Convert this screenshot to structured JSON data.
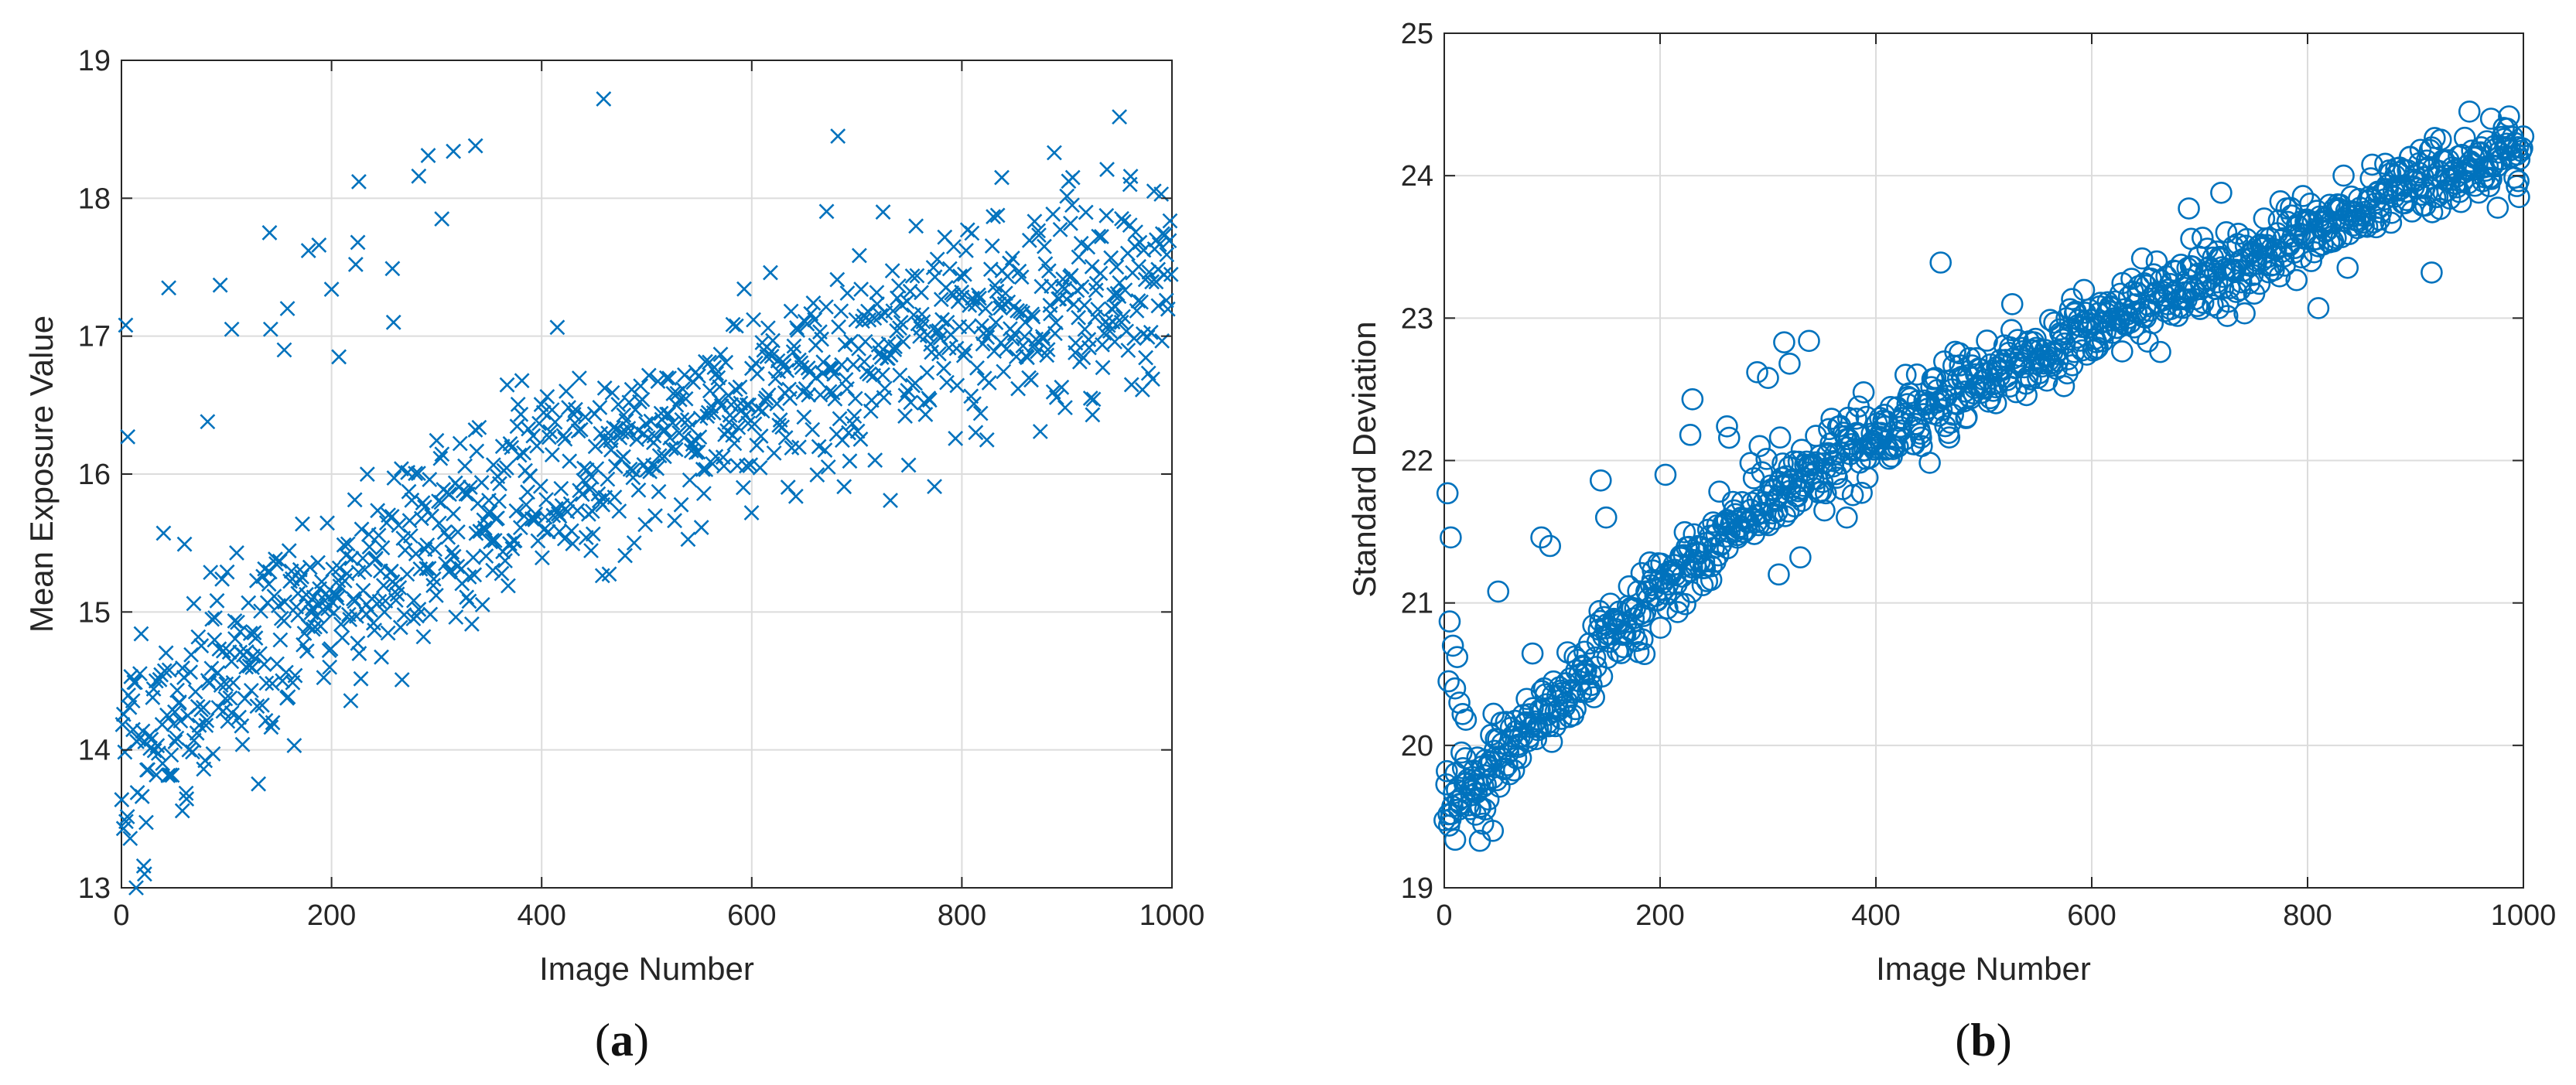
{
  "chart_data": [
    {
      "type": "scatter",
      "panel_label": "a",
      "title": "",
      "xlabel": "Image Number",
      "ylabel": "Mean Exposure Value",
      "xlim": [
        0,
        1000
      ],
      "ylim": [
        13,
        19
      ],
      "xticks": [
        0,
        200,
        400,
        600,
        800,
        1000
      ],
      "yticks": [
        13,
        14,
        15,
        16,
        17,
        18,
        19
      ],
      "grid": true,
      "marker": "x",
      "color": "#0072bd",
      "trend": {
        "points": [
          [
            0,
            14.0
          ],
          [
            200,
            15.1
          ],
          [
            400,
            15.95
          ],
          [
            600,
            16.55
          ],
          [
            800,
            17.05
          ],
          [
            1000,
            17.45
          ]
        ],
        "spread": 0.38
      },
      "point_count": 1000,
      "seed": 11,
      "outliers": [
        [
          4,
          17.08
        ],
        [
          6,
          16.27
        ],
        [
          2,
          13.43
        ],
        [
          14,
          13.0
        ],
        [
          22,
          13.1
        ],
        [
          45,
          17.35
        ],
        [
          94,
          17.37
        ],
        [
          82,
          16.38
        ],
        [
          105,
          17.05
        ],
        [
          141,
          17.75
        ],
        [
          142,
          17.05
        ],
        [
          155,
          16.9
        ],
        [
          158,
          17.2
        ],
        [
          178,
          17.62
        ],
        [
          188,
          17.66
        ],
        [
          200,
          17.34
        ],
        [
          207,
          16.85
        ],
        [
          223,
          17.52
        ],
        [
          225,
          17.68
        ],
        [
          226,
          18.12
        ],
        [
          258,
          17.49
        ],
        [
          259,
          17.1
        ],
        [
          283,
          18.16
        ],
        [
          292,
          18.31
        ],
        [
          305,
          17.85
        ],
        [
          316,
          18.34
        ],
        [
          337,
          18.38
        ],
        [
          459,
          18.72
        ],
        [
          682,
          18.45
        ],
        [
          950,
          18.59
        ],
        [
          725,
          17.9
        ],
        [
          888,
          18.33
        ],
        [
          960,
          18.1
        ],
        [
          905,
          17.95
        ],
        [
          838,
          18.15
        ]
      ]
    },
    {
      "type": "scatter",
      "panel_label": "b",
      "title": "",
      "xlabel": "Image Number",
      "ylabel": "Standard Deviation",
      "xlim": [
        0,
        1000
      ],
      "ylim": [
        19,
        25
      ],
      "xticks": [
        0,
        200,
        400,
        600,
        800,
        1000
      ],
      "yticks": [
        19,
        20,
        21,
        22,
        23,
        24,
        25
      ],
      "grid": true,
      "marker": "o",
      "color": "#0072bd",
      "trend": {
        "points": [
          [
            30,
            19.75
          ],
          [
            100,
            20.3
          ],
          [
            200,
            21.1
          ],
          [
            300,
            21.75
          ],
          [
            400,
            22.15
          ],
          [
            500,
            22.6
          ],
          [
            600,
            22.95
          ],
          [
            700,
            23.25
          ],
          [
            800,
            23.6
          ],
          [
            900,
            23.95
          ],
          [
            1000,
            24.2
          ]
        ],
        "spread": 0.13
      },
      "point_count": 990,
      "seed": 7,
      "outliers": [
        [
          3,
          21.77
        ],
        [
          6,
          21.46
        ],
        [
          5,
          20.87
        ],
        [
          8,
          20.7
        ],
        [
          4,
          20.45
        ],
        [
          10,
          20.4
        ],
        [
          12,
          20.62
        ],
        [
          14,
          20.3
        ],
        [
          17,
          20.22
        ],
        [
          20,
          20.18
        ],
        [
          16,
          19.95
        ],
        [
          25,
          19.65
        ],
        [
          28,
          19.72
        ],
        [
          33,
          19.33
        ],
        [
          36,
          19.45
        ],
        [
          38,
          19.55
        ],
        [
          41,
          19.62
        ],
        [
          45,
          19.4
        ],
        [
          48,
          19.92
        ],
        [
          50,
          21.08
        ],
        [
          90,
          21.46
        ],
        [
          98,
          21.4
        ],
        [
          145,
          21.86
        ],
        [
          150,
          21.6
        ],
        [
          205,
          21.9
        ],
        [
          230,
          22.43
        ],
        [
          228,
          22.18
        ],
        [
          264,
          22.16
        ],
        [
          262,
          22.24
        ],
        [
          290,
          22.62
        ],
        [
          300,
          22.58
        ],
        [
          315,
          22.83
        ],
        [
          320,
          22.68
        ],
        [
          338,
          22.84
        ],
        [
          373,
          21.6
        ],
        [
          460,
          23.39
        ],
        [
          310,
          21.2
        ],
        [
          330,
          21.32
        ],
        [
          690,
          23.77
        ],
        [
          720,
          23.88
        ],
        [
          810,
          23.07
        ],
        [
          915,
          23.32
        ],
        [
          950,
          24.45
        ],
        [
          970,
          24.4
        ],
        [
          985,
          24.33
        ],
        [
          995,
          24.2
        ],
        [
          996,
          23.85
        ]
      ]
    }
  ]
}
